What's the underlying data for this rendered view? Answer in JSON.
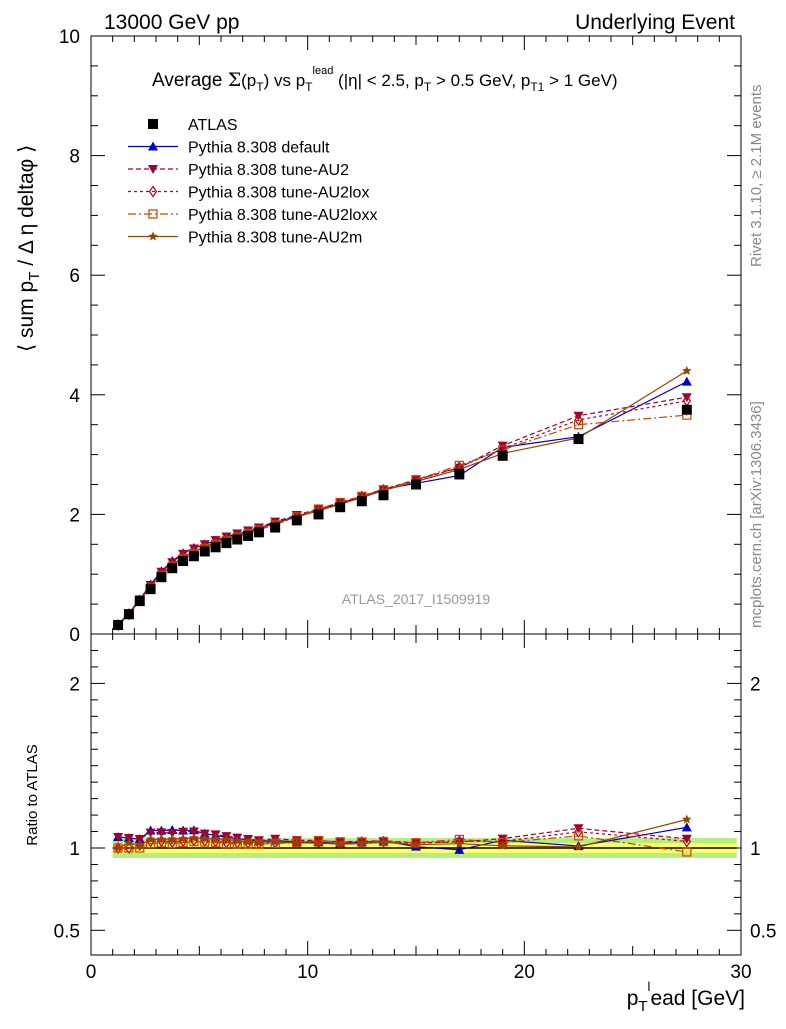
{
  "header": {
    "left": "13000 GeV pp",
    "right": "Underlying Event"
  },
  "side_labels": {
    "rivet": "Rivet 3.1.10, ≥ 2.1M events",
    "mcplots": "mcplots.cern.ch [arXiv:1306.3436]"
  },
  "watermark": "ATLAS_2017_I1509919",
  "chart_data": [
    {
      "type": "line",
      "title": "Average Σ(p_T) vs p_T^lead (|η| < 2.5, p_T > 0.5 GeV, p_T1 > 1 GeV)",
      "xlabel": "p_T^lead [GeV]",
      "ylabel": "⟨ sum p_T / Δη deltaφ ⟩",
      "xlim": [
        0,
        30
      ],
      "ylim": [
        0,
        10
      ],
      "x": [
        1.25,
        1.75,
        2.25,
        2.75,
        3.25,
        3.75,
        4.25,
        4.75,
        5.25,
        5.75,
        6.25,
        6.75,
        7.25,
        7.75,
        8.5,
        9.5,
        10.5,
        11.5,
        12.5,
        13.5,
        15.0,
        17.0,
        19.0,
        22.5,
        27.5
      ],
      "series": [
        {
          "name": "ATLAS",
          "values": [
            0.15,
            0.33,
            0.55,
            0.75,
            0.95,
            1.1,
            1.22,
            1.3,
            1.38,
            1.45,
            1.52,
            1.58,
            1.64,
            1.7,
            1.78,
            1.9,
            2.0,
            2.12,
            2.22,
            2.32,
            2.5,
            2.68,
            2.98,
            3.26,
            3.75
          ]
        },
        {
          "name": "Pythia 8.308 default",
          "values": [
            0.16,
            0.35,
            0.58,
            0.83,
            1.05,
            1.22,
            1.35,
            1.44,
            1.5,
            1.56,
            1.62,
            1.67,
            1.72,
            1.77,
            1.86,
            1.97,
            2.07,
            2.18,
            2.3,
            2.42,
            2.52,
            2.65,
            3.12,
            3.3,
            4.22
          ]
        },
        {
          "name": "Pythia 8.308 tune-AU2",
          "values": [
            0.16,
            0.35,
            0.58,
            0.82,
            1.04,
            1.2,
            1.34,
            1.43,
            1.5,
            1.57,
            1.63,
            1.68,
            1.73,
            1.78,
            1.88,
            1.99,
            2.09,
            2.2,
            2.31,
            2.42,
            2.58,
            2.78,
            3.15,
            3.65,
            3.96
          ]
        },
        {
          "name": "Pythia 8.308 tune-AU2lox",
          "values": [
            0.15,
            0.33,
            0.56,
            0.78,
            0.99,
            1.14,
            1.27,
            1.36,
            1.44,
            1.51,
            1.57,
            1.63,
            1.69,
            1.75,
            1.84,
            1.96,
            2.07,
            2.18,
            2.3,
            2.41,
            2.57,
            2.79,
            3.1,
            3.58,
            3.9
          ]
        },
        {
          "name": "Pythia 8.308 tune-AU2loxx",
          "values": [
            0.15,
            0.33,
            0.55,
            0.77,
            0.98,
            1.13,
            1.26,
            1.35,
            1.43,
            1.5,
            1.56,
            1.62,
            1.68,
            1.74,
            1.83,
            1.96,
            2.09,
            2.2,
            2.3,
            2.41,
            2.58,
            2.82,
            3.08,
            3.5,
            3.66
          ]
        },
        {
          "name": "Pythia 8.308 tune-AU2m",
          "values": [
            0.15,
            0.34,
            0.56,
            0.79,
            1.0,
            1.16,
            1.29,
            1.38,
            1.46,
            1.53,
            1.6,
            1.65,
            1.7,
            1.76,
            1.85,
            1.96,
            2.06,
            2.17,
            2.28,
            2.4,
            2.55,
            2.75,
            3.02,
            3.28,
            4.4
          ]
        }
      ],
      "yticks": [
        "0",
        "2",
        "4",
        "6",
        "8",
        "10"
      ]
    },
    {
      "type": "line",
      "ylabel": "Ratio to ATLAS",
      "xlabel": "p_T^lead [GeV]",
      "xlim": [
        0,
        30
      ],
      "ylim": [
        0.35,
        2.3
      ],
      "xticks": [
        "0",
        "10",
        "20",
        "30"
      ],
      "yticks": [
        "0.5",
        "1",
        "2"
      ],
      "band_colors": {
        "inner": "#ffff66",
        "outer": "#b3ee7f"
      }
    }
  ],
  "legend": {
    "entries": [
      {
        "label": "ATLAS",
        "color": "#000000",
        "marker": "square-filled"
      },
      {
        "label": "Pythia 8.308 default",
        "color": "#0000cc",
        "marker": "triangle-up"
      },
      {
        "label": "Pythia 8.308 tune-AU2",
        "color": "#a00033",
        "marker": "triangle-down"
      },
      {
        "label": "Pythia 8.308 tune-AU2lox",
        "color": "#b00020",
        "marker": "diamond-open"
      },
      {
        "label": "Pythia 8.308 tune-AU2loxx",
        "color": "#cc4400",
        "marker": "square-open"
      },
      {
        "label": "Pythia 8.308 tune-AU2m",
        "color": "#994400",
        "marker": "star"
      }
    ]
  }
}
